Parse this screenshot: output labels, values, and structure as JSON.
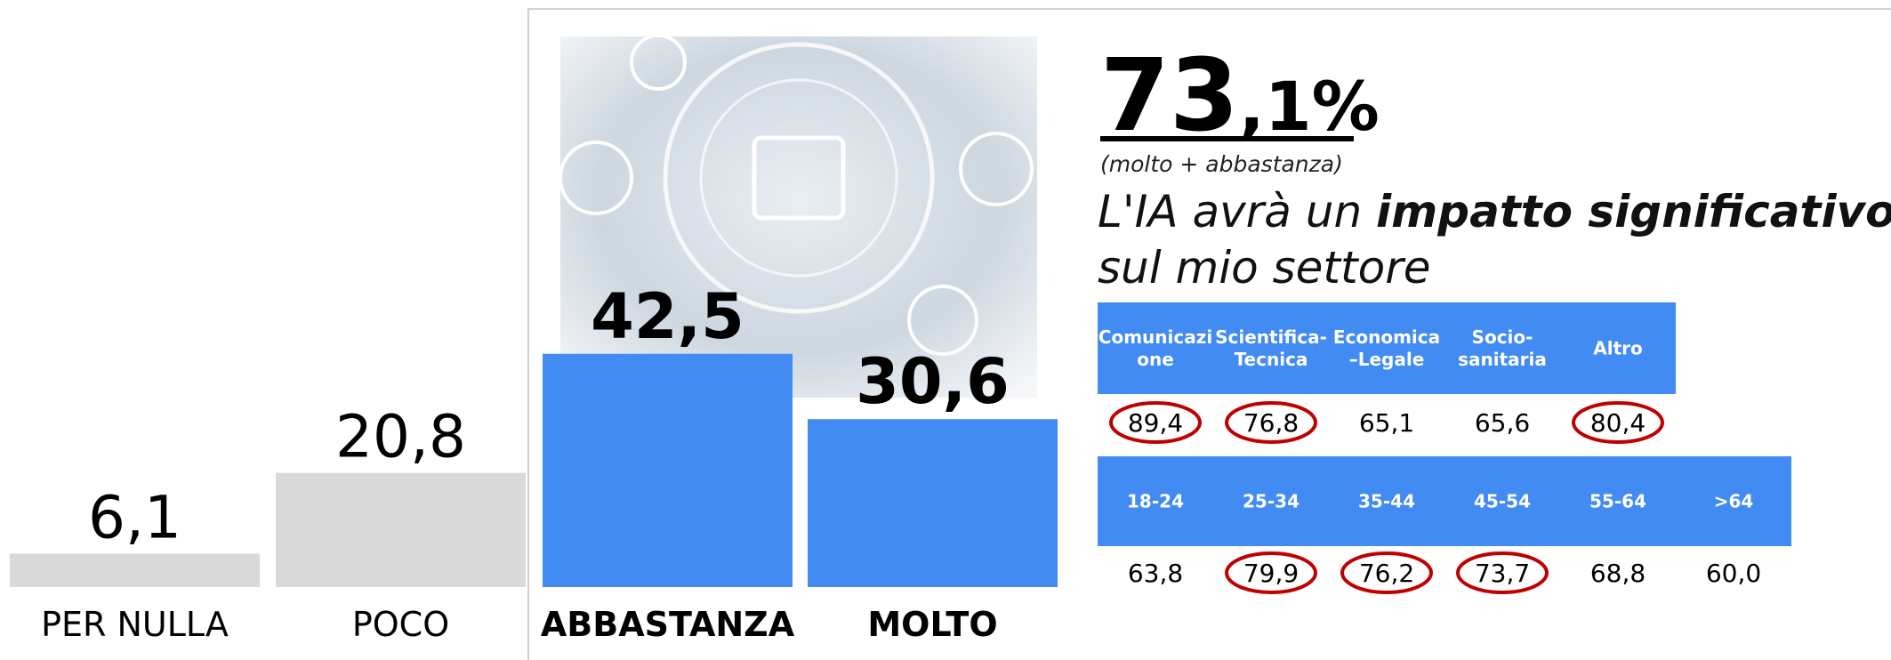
{
  "chart_data": {
    "type": "bar",
    "categories": [
      "PER NULLA",
      "POCO",
      "ABBASTANZA",
      "MOLTO"
    ],
    "values": [
      6.1,
      20.8,
      42.5,
      30.6
    ],
    "value_labels": [
      "6,1",
      "20,8",
      "42,5",
      "30,6"
    ],
    "colors": [
      "#d9d9d9",
      "#d9d9d9",
      "#428bf2",
      "#428bf2"
    ],
    "bold": [
      false,
      false,
      true,
      true
    ]
  },
  "headline": {
    "integer": "73",
    "fraction": ",1%",
    "note": "(molto + abbastanza)",
    "caption": [
      "L'IA avrà un ",
      "impatto significativo",
      "sul mio settore"
    ]
  },
  "tables": [
    {
      "headers": [
        [
          "Comunicazi",
          "one"
        ],
        [
          "Scientifica-",
          "Tecnica"
        ],
        [
          "Economica",
          "–Legale"
        ],
        [
          "Socio-",
          "sanitaria"
        ],
        [
          "Altro"
        ]
      ],
      "values": [
        "89,4",
        "76,8",
        "65,1",
        "65,6",
        "80,4"
      ],
      "highlighted": [
        0,
        1,
        4
      ]
    },
    {
      "headers": [
        [
          "18-24"
        ],
        [
          "25-34"
        ],
        [
          "35-44"
        ],
        [
          "45-54"
        ],
        [
          "55-64"
        ],
        [
          ">64"
        ]
      ],
      "values": [
        "63,8",
        "79,9",
        "76,2",
        "73,7",
        "68,8",
        "60,0"
      ],
      "highlighted": [
        1,
        2,
        3
      ]
    }
  ]
}
